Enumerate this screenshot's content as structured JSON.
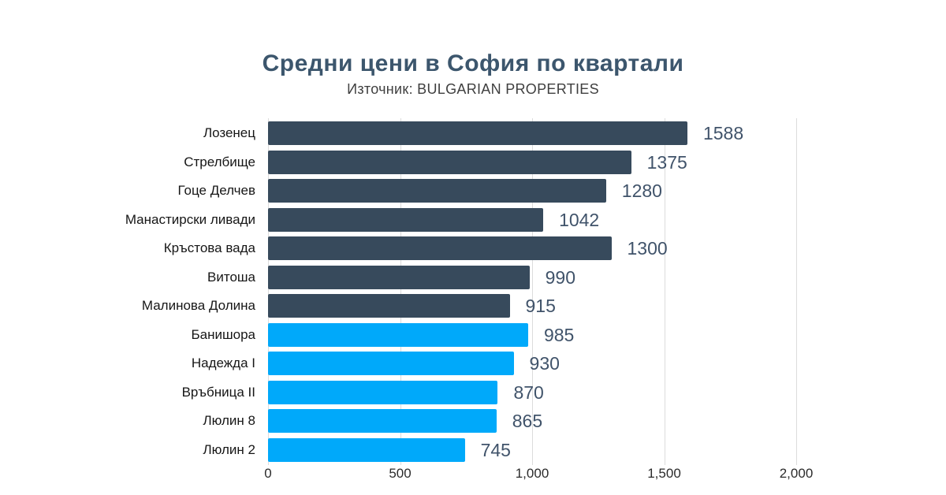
{
  "title": "Средни цени в София по квартали",
  "subtitle": "Източник: BULGARIAN PROPERTIES",
  "colors": {
    "title": "#3c566d",
    "subtitle": "#3f3f3f",
    "category_label": "#161616",
    "value_label": "#40536a",
    "tick_label": "#2b2b2b",
    "gridline": "#dcdcdc",
    "dark_bar": "#374a5c",
    "light_bar": "#00a9fa"
  },
  "chart_data": {
    "type": "bar",
    "orientation": "horizontal",
    "title": "Средни цени в София по квартали",
    "subtitle": "Източник: BULGARIAN PROPERTIES",
    "xlabel": "",
    "ylabel": "",
    "xlim": [
      0,
      2000
    ],
    "xticks": [
      "0",
      "500",
      "1,000",
      "1,500",
      "2,000"
    ],
    "xtick_values": [
      0,
      500,
      1000,
      1500,
      2000
    ],
    "grid": "vertical",
    "legend": "none",
    "value_labels": "outside-end",
    "categories": [
      "Лозенец",
      "Стрелбище",
      "Гоце Делчев",
      "Манастирски ливади",
      "Кръстова вада",
      "Витоша",
      "Малинова Долина",
      "Банишора",
      "Надежда I",
      "Връбница II",
      "Люлин 8",
      "Люлин 2"
    ],
    "values": [
      1588,
      1375,
      1280,
      1042,
      1300,
      990,
      915,
      985,
      930,
      870,
      865,
      745
    ],
    "items": [
      {
        "label": "Лозенец",
        "value": 1588,
        "color_key": "dark_bar"
      },
      {
        "label": "Стрелбище",
        "value": 1375,
        "color_key": "dark_bar"
      },
      {
        "label": "Гоце Делчев",
        "value": 1280,
        "color_key": "dark_bar"
      },
      {
        "label": "Манастирски ливади",
        "value": 1042,
        "color_key": "dark_bar"
      },
      {
        "label": "Кръстова вада",
        "value": 1300,
        "color_key": "dark_bar"
      },
      {
        "label": "Витоша",
        "value": 990,
        "color_key": "dark_bar"
      },
      {
        "label": "Малинова Долина",
        "value": 915,
        "color_key": "dark_bar"
      },
      {
        "label": "Банишора",
        "value": 985,
        "color_key": "light_bar"
      },
      {
        "label": "Надежда I",
        "value": 930,
        "color_key": "light_bar"
      },
      {
        "label": "Връбница II",
        "value": 870,
        "color_key": "light_bar"
      },
      {
        "label": "Люлин 8",
        "value": 865,
        "color_key": "light_bar"
      },
      {
        "label": "Люлин 2",
        "value": 745,
        "color_key": "light_bar"
      }
    ]
  }
}
